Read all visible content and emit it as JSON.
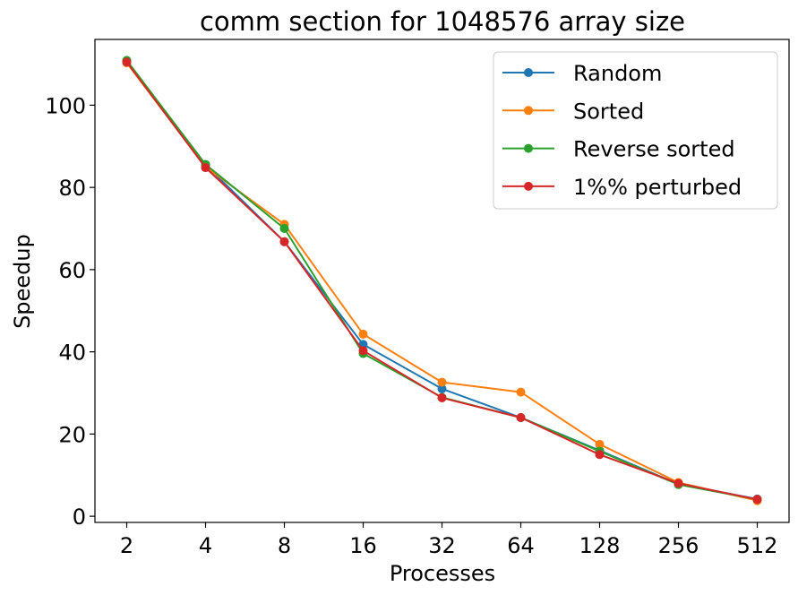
{
  "chart_data": {
    "type": "line",
    "title": "comm section for 1048576 array size",
    "xlabel": "Processes",
    "ylabel": "Speedup",
    "categories": [
      "2",
      "4",
      "8",
      "16",
      "32",
      "64",
      "128",
      "256",
      "512"
    ],
    "ylim": [
      -1.5,
      116
    ],
    "yticks": [
      0,
      20,
      40,
      60,
      80,
      100
    ],
    "grid": false,
    "legend_position": "top-right",
    "series": [
      {
        "name": "Random",
        "color": "#1f77b4",
        "values": [
          110.7,
          85.5,
          66.8,
          41.8,
          31.0,
          24.0,
          16.0,
          7.8,
          4.2
        ]
      },
      {
        "name": "Sorted",
        "color": "#ff7f0e",
        "values": [
          110.3,
          85.0,
          71.0,
          44.3,
          32.6,
          30.2,
          17.5,
          8.2,
          3.8
        ]
      },
      {
        "name": "Reverse sorted",
        "color": "#2ca02c",
        "values": [
          110.9,
          85.6,
          70.0,
          39.6,
          28.9,
          24.0,
          15.8,
          7.7,
          4.1
        ]
      },
      {
        "name": "1%% perturbed",
        "color": "#d62728",
        "values": [
          110.5,
          84.8,
          66.8,
          40.3,
          28.8,
          24.0,
          15.0,
          8.0,
          4.1
        ]
      }
    ]
  }
}
